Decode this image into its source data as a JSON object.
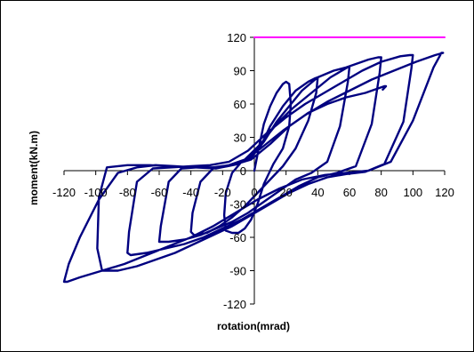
{
  "chart_data": {
    "type": "line",
    "title": "",
    "xlabel": "rotation(mrad)",
    "ylabel": "moment(kN.m)",
    "xlim": [
      -120,
      120
    ],
    "ylim": [
      -120,
      120
    ],
    "x_ticks": [
      -120,
      -100,
      -80,
      -60,
      -40,
      -20,
      0,
      20,
      40,
      60,
      80,
      100,
      120
    ],
    "y_ticks": [
      120,
      90,
      60,
      30,
      0,
      -30,
      -60,
      -90,
      -120
    ],
    "grid": false,
    "legend": "none",
    "colors": {
      "series": "#000080",
      "limit": "#ff00ff"
    },
    "series": [
      {
        "role": "limit-line",
        "x": [
          0,
          120
        ],
        "y": [
          120,
          120
        ]
      },
      {
        "role": "hysteresis",
        "x": [
          0,
          3,
          6,
          10,
          14,
          18,
          20,
          22,
          23,
          22,
          18,
          12,
          6,
          2,
          -2,
          -6,
          -10,
          -14,
          -18,
          -19,
          -18,
          -14,
          -8,
          -2,
          4,
          10,
          18,
          26,
          34,
          38,
          40,
          39,
          34,
          26,
          18,
          10,
          2,
          -6,
          -14,
          -22,
          -30,
          -38,
          -40,
          -39,
          -34,
          -26,
          -18,
          -10,
          -2,
          6,
          14,
          22,
          30,
          40,
          50,
          58,
          60,
          59,
          54,
          46,
          36,
          26,
          16,
          6,
          -4,
          -14,
          -24,
          -34,
          -44,
          -54,
          -60,
          -59,
          -54,
          -46,
          -36,
          -26,
          -16,
          -6,
          4,
          14,
          24,
          36,
          48,
          60,
          72,
          78,
          80,
          79,
          74,
          64,
          52,
          40,
          28,
          16,
          4,
          -8,
          -20,
          -32,
          -44,
          -56,
          -68,
          -78,
          -80,
          -79,
          -74,
          -64,
          -52,
          -40,
          -28,
          -16,
          -4,
          8,
          20,
          32,
          44,
          56,
          68,
          80,
          92,
          98,
          100,
          99,
          94,
          82,
          70,
          58,
          46,
          34,
          22,
          10,
          -2,
          -14,
          -26,
          -38,
          -50,
          -62,
          -74,
          -86,
          -96,
          -99,
          -98,
          -93,
          -80,
          -66,
          -52,
          -38,
          -24,
          -10,
          4,
          18,
          32,
          46,
          60,
          74,
          88,
          102,
          114,
          119,
          118,
          113,
          100,
          86,
          72,
          58,
          44,
          30,
          16,
          2,
          -12,
          -26,
          -40,
          -54,
          -68,
          -82,
          -96,
          -110,
          -118,
          -120,
          -117,
          -110,
          -98,
          -86,
          -74,
          -62,
          -50,
          -38,
          -26,
          -14,
          -2,
          10,
          22,
          34,
          46,
          58,
          70,
          78,
          82,
          83,
          81
        ],
        "y": [
          0,
          22,
          42,
          58,
          70,
          78,
          80,
          78,
          60,
          40,
          20,
          6,
          -12,
          -30,
          -44,
          -52,
          -56,
          -56,
          -54,
          -40,
          -20,
          -2,
          8,
          12,
          22,
          40,
          58,
          72,
          80,
          83,
          84,
          70,
          45,
          20,
          4,
          -8,
          -20,
          -32,
          -42,
          -50,
          -56,
          -58,
          -55,
          -38,
          -10,
          2,
          4,
          6,
          12,
          26,
          44,
          58,
          72,
          84,
          90,
          93,
          94,
          80,
          40,
          8,
          -2,
          -8,
          -18,
          -28,
          -38,
          -46,
          -52,
          -58,
          -62,
          -64,
          -64,
          -50,
          -10,
          2,
          3,
          3,
          5,
          10,
          24,
          42,
          56,
          70,
          84,
          94,
          100,
          102,
          102,
          88,
          42,
          4,
          -2,
          -6,
          -14,
          -24,
          -34,
          -44,
          -52,
          -60,
          -66,
          -70,
          -74,
          -76,
          -74,
          -55,
          -10,
          2,
          3,
          4,
          5,
          8,
          18,
          34,
          48,
          60,
          70,
          80,
          90,
          98,
          103,
          104,
          104,
          92,
          44,
          6,
          -1,
          -3,
          -6,
          -12,
          -20,
          -30,
          -40,
          -50,
          -58,
          -66,
          -74,
          -80,
          -86,
          -90,
          -90,
          -70,
          -24,
          3,
          5,
          5,
          4,
          3,
          2,
          6,
          20,
          36,
          50,
          62,
          72,
          82,
          90,
          98,
          104,
          106,
          106,
          93,
          45,
          8,
          0,
          -2,
          -4,
          -8,
          -16,
          -26,
          -38,
          -50,
          -60,
          -68,
          -76,
          -84,
          -90,
          -96,
          -100,
          -100,
          -84,
          -60,
          -26,
          -2,
          3,
          5,
          4,
          3,
          3,
          5,
          10,
          24,
          40,
          52,
          60,
          66,
          70,
          74,
          76,
          76,
          73
        ]
      }
    ]
  }
}
